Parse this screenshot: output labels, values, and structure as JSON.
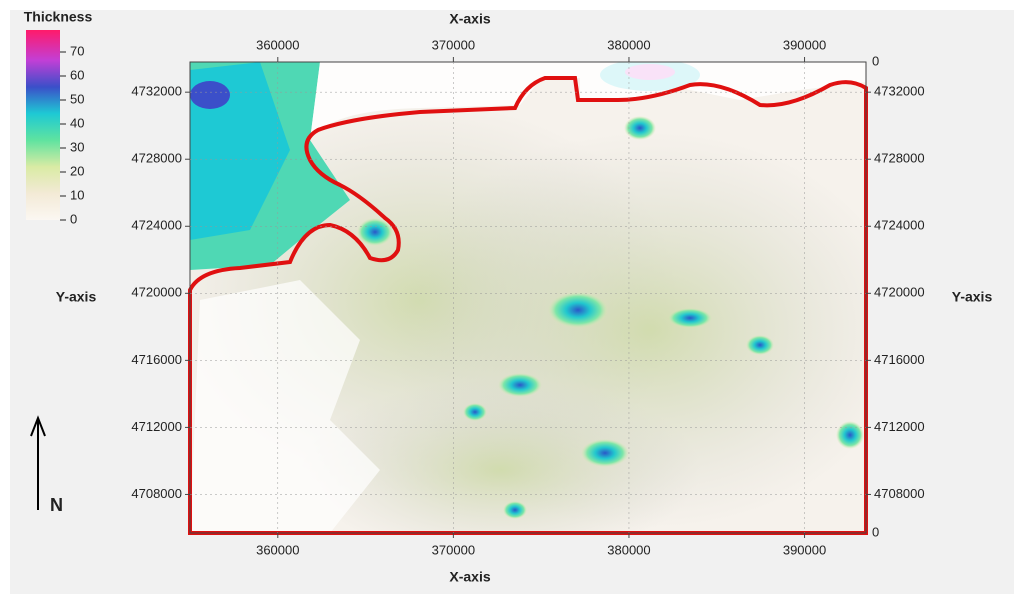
{
  "legend": {
    "title": "Thickness",
    "ticks": [
      0,
      10,
      20,
      30,
      40,
      50,
      60,
      70
    ]
  },
  "x_axis": {
    "label": "X-axis",
    "ticks": [
      360000,
      370000,
      380000,
      390000
    ],
    "xlim": [
      355000,
      393500
    ]
  },
  "y_axis": {
    "label": "Y-axis",
    "ticks": [
      4708000,
      4712000,
      4716000,
      4720000,
      4724000,
      4728000,
      4732000
    ],
    "ylim": [
      4705700,
      4733800
    ]
  },
  "right_axis_end_labels": [
    "0",
    "0"
  ],
  "north_label": "N"
}
